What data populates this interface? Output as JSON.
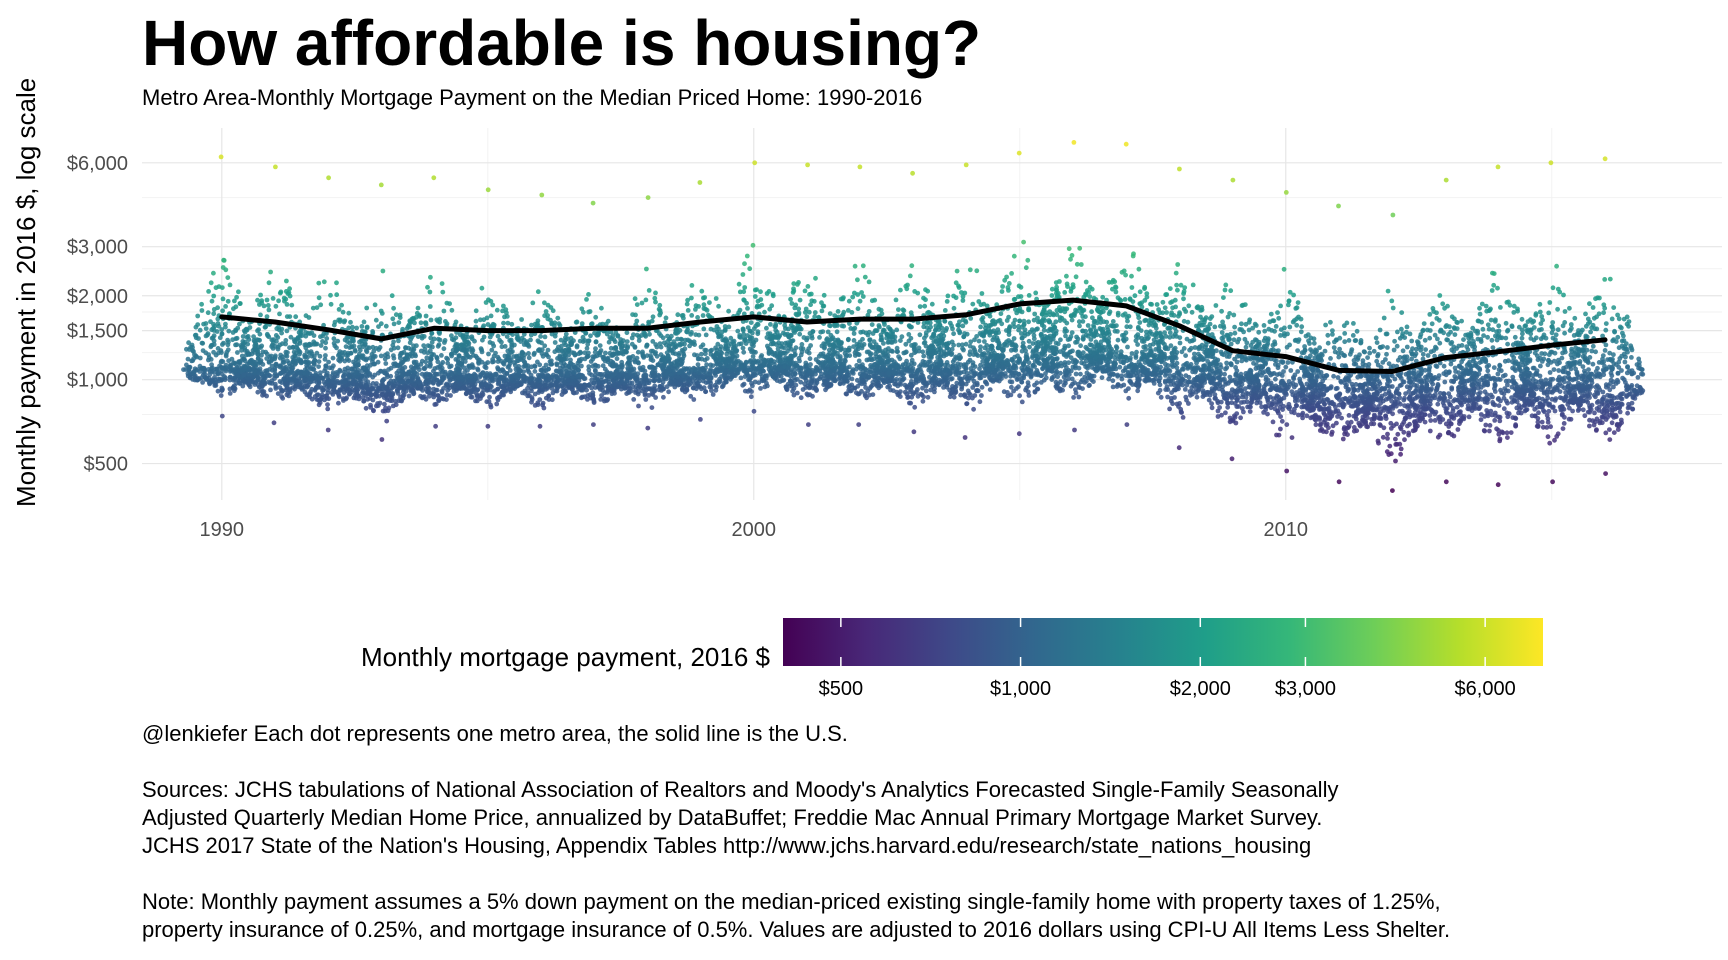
{
  "title": "How affordable is housing?",
  "subtitle": "Metro Area-Monthly Mortgage Payment on the Median Priced Home: 1990-2016",
  "chart_data": {
    "type": "scatter",
    "title": "How affordable is housing?",
    "subtitle": "Metro Area-Monthly Mortgage Payment on the Median Priced Home: 1990-2016",
    "xlabel": "",
    "ylabel": "Monthly payment in 2016 $, log scale",
    "y_scale": "log",
    "xlim": [
      1988.5,
      2018.2
    ],
    "ylim": [
      370,
      8000
    ],
    "x_ticks": [
      1990,
      2000,
      2010
    ],
    "y_ticks": [
      {
        "value": 500,
        "label": "$500"
      },
      {
        "value": 1000,
        "label": "$1,000"
      },
      {
        "value": 1500,
        "label": "$1,500"
      },
      {
        "value": 2000,
        "label": "$2,000"
      },
      {
        "value": 3000,
        "label": "$3,000"
      },
      {
        "value": 6000,
        "label": "$6,000"
      }
    ],
    "grid": true,
    "series": [
      {
        "name": "",
        "style": "line",
        "color": "#000000",
        "x": [
          1990,
          1991,
          1992,
          1993,
          1994,
          1995,
          1996,
          1997,
          1998,
          1999,
          2000,
          2001,
          2002,
          2003,
          2004,
          2005,
          2006,
          2007,
          2008,
          2009,
          2010,
          2011,
          2012,
          2013,
          2014,
          2015,
          2016
        ],
        "values": [
          1680,
          1610,
          1510,
          1400,
          1530,
          1500,
          1500,
          1530,
          1530,
          1610,
          1680,
          1610,
          1650,
          1650,
          1710,
          1870,
          1930,
          1840,
          1560,
          1270,
          1210,
          1080,
          1070,
          1200,
          1260,
          1330,
          1390
        ]
      }
    ],
    "metro_distribution": {
      "description_source": "Each dot represents one metro area",
      "x": [
        1990,
        1991,
        1992,
        1993,
        1994,
        1995,
        1996,
        1997,
        1998,
        1999,
        2000,
        2001,
        2002,
        2003,
        2004,
        2005,
        2006,
        2007,
        2008,
        2009,
        2010,
        2011,
        2012,
        2013,
        2014,
        2015,
        2016
      ],
      "median": [
        1110,
        1090,
        1040,
        990,
        1050,
        1040,
        1040,
        1050,
        1060,
        1100,
        1180,
        1120,
        1130,
        1110,
        1140,
        1220,
        1260,
        1230,
        1150,
        1030,
        990,
        890,
        870,
        960,
        1000,
        1000,
        960
      ],
      "min": [
        740,
        700,
        660,
        610,
        680,
        680,
        680,
        690,
        670,
        720,
        770,
        690,
        690,
        650,
        620,
        640,
        660,
        690,
        570,
        520,
        470,
        430,
        400,
        430,
        420,
        430,
        460
      ],
      "max": [
        6300,
        5800,
        5300,
        5000,
        5300,
        4800,
        4600,
        4300,
        4500,
        5100,
        6000,
        5900,
        5800,
        5500,
        5900,
        6500,
        7100,
        7000,
        5700,
        5200,
        4700,
        4200,
        3900,
        5200,
        5800,
        6000,
        6200
      ]
    },
    "legend": {
      "title": "Monthly mortgage payment, 2016 $",
      "placement": "bottom",
      "type": "colorbar",
      "palette": "viridis",
      "range": [
        400,
        7500
      ],
      "ticks": [
        {
          "value": 500,
          "label": "$500"
        },
        {
          "value": 1000,
          "label": "$1,000"
        },
        {
          "value": 2000,
          "label": "$2,000"
        },
        {
          "value": 3000,
          "label": "$3,000"
        },
        {
          "value": 6000,
          "label": "$6,000"
        }
      ]
    }
  },
  "caption": {
    "line1": "@lenkiefer Each dot represents one metro area, the solid line is the U.S.",
    "sources1": "Sources: JCHS tabulations of National Association of Realtors and Moody's Analytics Forecasted Single-Family Seasonally",
    "sources2": "Adjusted Quarterly Median Home Price, annualized by DataBuffet; Freddie Mac Annual Primary Mortgage Market Survey.",
    "sources3": "JCHS 2017 State of the Nation's Housing, Appendix Tables http://www.jchs.harvard.edu/research/state_nations_housing",
    "note1": "Note: Monthly payment assumes a 5% down payment on the median-priced existing single-family home with property taxes of 1.25%,",
    "note2": "property insurance of 0.25%, and mortgage insurance of 0.5%. Values are adjusted to 2016 dollars using CPI-U All Items Less Shelter."
  }
}
